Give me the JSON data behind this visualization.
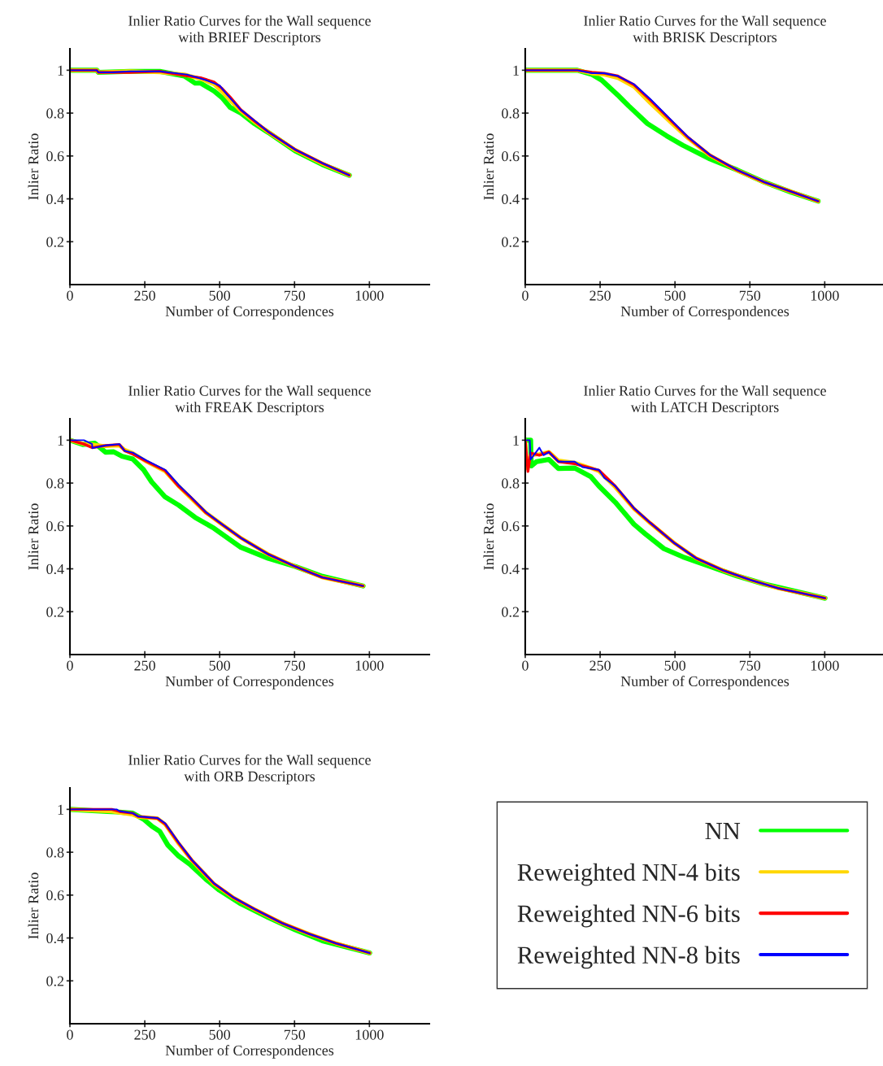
{
  "chart_data": [
    {
      "type": "line",
      "title": "Inlier Ratio Curves for the Wall sequence\nwith BRIEF Descriptors",
      "xlabel": "Number of Correspondences",
      "ylabel": "Inlier Ratio",
      "xlim": [
        0,
        1200
      ],
      "xticks": [
        0,
        250,
        500,
        750,
        1000
      ],
      "ylim": [
        0,
        1.1
      ],
      "yticks": [
        0.2,
        0.4,
        0.6,
        0.8,
        1
      ],
      "legend": "bottom right",
      "series": [
        {
          "name": "NN",
          "color": "#00ff00",
          "x": [
            0,
            90,
            95,
            200,
            300,
            382,
            418,
            436,
            481,
            508,
            535,
            571,
            617,
            662,
            752,
            843,
            933
          ],
          "values": [
            1,
            1,
            0.99,
            0.995,
            0.995,
            0.973,
            0.94,
            0.94,
            0.903,
            0.872,
            0.827,
            0.8,
            0.75,
            0.71,
            0.624,
            0.56,
            0.51
          ]
        },
        {
          "name": "Reweighted NN-4 bits",
          "color": "#ffd700",
          "x": [
            0,
            90,
            95,
            200,
            300,
            382,
            436,
            481,
            508,
            535,
            571,
            617,
            662,
            752,
            843,
            933
          ],
          "values": [
            1,
            1,
            0.99,
            0.995,
            0.99,
            0.98,
            0.96,
            0.935,
            0.9,
            0.86,
            0.81,
            0.758,
            0.712,
            0.628,
            0.564,
            0.51
          ]
        },
        {
          "name": "Reweighted NN-6 bits",
          "color": "#ff0000",
          "x": [
            0,
            90,
            95,
            200,
            300,
            382,
            436,
            481,
            508,
            535,
            571,
            617,
            662,
            752,
            843,
            933
          ],
          "values": [
            1,
            1,
            0.99,
            0.99,
            0.995,
            0.975,
            0.965,
            0.945,
            0.915,
            0.875,
            0.815,
            0.762,
            0.713,
            0.63,
            0.566,
            0.51
          ]
        },
        {
          "name": "Reweighted NN-8 bits",
          "color": "#0000ff",
          "x": [
            0,
            90,
            95,
            140,
            200,
            300,
            391,
            454,
            472,
            500,
            526,
            571,
            617,
            662,
            752,
            843,
            933
          ],
          "values": [
            1,
            1,
            0.99,
            0.99,
            0.995,
            0.995,
            0.98,
            0.954,
            0.944,
            0.929,
            0.884,
            0.815,
            0.764,
            0.713,
            0.63,
            0.567,
            0.51
          ]
        }
      ]
    },
    {
      "type": "line",
      "title": "Inlier Ratio Curves for the Wall sequence\nwith BRISK Descriptors",
      "xlabel": "Number of Correspondences",
      "ylabel": "Inlier Ratio",
      "xlim": [
        0,
        1200
      ],
      "xticks": [
        0,
        250,
        500,
        750,
        1000
      ],
      "ylim": [
        0,
        1.1
      ],
      "yticks": [
        0.2,
        0.4,
        0.6,
        0.8,
        1
      ],
      "series": [
        {
          "color": "#00ff00",
          "x": [
            0,
            174,
            223,
            255,
            309,
            345,
            408,
            472,
            526,
            617,
            707,
            798,
            888,
            978
          ],
          "values": [
            1,
            1,
            0.98,
            0.954,
            0.884,
            0.834,
            0.751,
            0.694,
            0.65,
            0.586,
            0.535,
            0.478,
            0.431,
            0.389
          ]
        },
        {
          "color": "#ffd700",
          "x": [
            0,
            174,
            223,
            264,
            309,
            363,
            418,
            490,
            544,
            617,
            707,
            798,
            888,
            978
          ],
          "values": [
            1,
            1,
            0.985,
            0.98,
            0.964,
            0.923,
            0.846,
            0.751,
            0.682,
            0.602,
            0.533,
            0.477,
            0.433,
            0.389
          ]
        },
        {
          "color": "#ff0000",
          "x": [
            0,
            174,
            223,
            264,
            309,
            363,
            418,
            490,
            544,
            617,
            707,
            798,
            888,
            978
          ],
          "values": [
            1,
            1,
            0.99,
            0.986,
            0.973,
            0.932,
            0.86,
            0.76,
            0.686,
            0.604,
            0.534,
            0.478,
            0.434,
            0.389
          ]
        },
        {
          "color": "#0000ff",
          "x": [
            0,
            174,
            223,
            264,
            309,
            363,
            418,
            490,
            544,
            617,
            707,
            798,
            888,
            978
          ],
          "values": [
            1,
            1,
            0.986,
            0.986,
            0.973,
            0.935,
            0.865,
            0.764,
            0.688,
            0.605,
            0.535,
            0.478,
            0.434,
            0.389
          ]
        }
      ]
    },
    {
      "type": "line",
      "title": "Inlier Ratio Curves for the Wall sequence\nwith FREAK Descriptors",
      "xlabel": "Number of Correspondences",
      "ylabel": "Inlier Ratio",
      "xlim": [
        0,
        1200
      ],
      "xticks": [
        0,
        250,
        500,
        750,
        1000
      ],
      "ylim": [
        0,
        1.1
      ],
      "yticks": [
        0.2,
        0.4,
        0.6,
        0.8,
        1
      ],
      "series": [
        {
          "color": "#00ff00",
          "x": [
            0,
            43,
            83,
            119,
            146,
            174,
            210,
            246,
            273,
            318,
            363,
            418,
            481,
            526,
            571,
            662,
            752,
            843,
            979
          ],
          "values": [
            1,
            0.98,
            0.986,
            0.944,
            0.946,
            0.925,
            0.912,
            0.862,
            0.805,
            0.735,
            0.697,
            0.64,
            0.589,
            0.544,
            0.5,
            0.449,
            0.411,
            0.365,
            0.32
          ]
        },
        {
          "color": "#ffd700",
          "x": [
            0,
            47,
            74,
            119,
            165,
            183,
            210,
            255,
            318,
            363,
            400,
            454,
            508,
            571,
            662,
            752,
            843,
            979
          ],
          "values": [
            1,
            0.982,
            0.98,
            0.972,
            0.975,
            0.955,
            0.94,
            0.9,
            0.855,
            0.785,
            0.735,
            0.662,
            0.607,
            0.544,
            0.468,
            0.411,
            0.36,
            0.32
          ]
        },
        {
          "color": "#ff0000",
          "x": [
            0,
            47,
            74,
            119,
            165,
            183,
            210,
            255,
            318,
            363,
            400,
            454,
            508,
            571,
            662,
            752,
            843,
            979
          ],
          "values": [
            1,
            0.982,
            0.965,
            0.975,
            0.98,
            0.95,
            0.935,
            0.902,
            0.858,
            0.785,
            0.738,
            0.662,
            0.607,
            0.544,
            0.468,
            0.411,
            0.36,
            0.32
          ]
        },
        {
          "color": "#0000ff",
          "x": [
            0,
            47,
            74,
            75,
            119,
            165,
            183,
            210,
            255,
            318,
            363,
            400,
            454,
            508,
            571,
            662,
            752,
            843,
            979
          ],
          "values": [
            1,
            1,
            0.982,
            0.963,
            0.976,
            0.982,
            0.95,
            0.942,
            0.906,
            0.862,
            0.792,
            0.741,
            0.665,
            0.608,
            0.544,
            0.468,
            0.411,
            0.36,
            0.32
          ]
        }
      ]
    },
    {
      "type": "line",
      "title": "Inlier Ratio Curves for the Wall sequence\nwith LATCH Descriptors",
      "xlabel": "Number of Correspondences",
      "ylabel": "Inlier Ratio",
      "xlim": [
        0,
        1200
      ],
      "xticks": [
        0,
        250,
        500,
        750,
        1000
      ],
      "ylim": [
        0,
        1.1
      ],
      "yticks": [
        0.2,
        0.4,
        0.6,
        0.8,
        1
      ],
      "series": [
        {
          "color": "#00ff00",
          "x": [
            0,
            18,
            20,
            38,
            79,
            111,
            165,
            219,
            246,
            301,
            363,
            400,
            463,
            526,
            617,
            707,
            798,
            1001
          ],
          "values": [
            1,
            1,
            0.88,
            0.9,
            0.91,
            0.868,
            0.87,
            0.83,
            0.786,
            0.71,
            0.608,
            0.564,
            0.494,
            0.456,
            0.411,
            0.367,
            0.329,
            0.263
          ]
        },
        {
          "color": "#ffd700",
          "x": [
            0,
            5,
            18,
            47,
            79,
            111,
            165,
            219,
            246,
            301,
            363,
            418,
            499,
            571,
            662,
            752,
            843,
            1001
          ],
          "values": [
            1,
            0.87,
            0.93,
            0.935,
            0.945,
            0.905,
            0.895,
            0.87,
            0.855,
            0.78,
            0.68,
            0.612,
            0.519,
            0.449,
            0.392,
            0.348,
            0.31,
            0.263
          ]
        },
        {
          "color": "#ff0000",
          "x": [
            0,
            9,
            18,
            47,
            79,
            111,
            165,
            219,
            246,
            301,
            363,
            418,
            499,
            571,
            662,
            752,
            843,
            1001
          ],
          "values": [
            1,
            0.854,
            0.94,
            0.93,
            0.945,
            0.9,
            0.89,
            0.87,
            0.86,
            0.785,
            0.682,
            0.614,
            0.519,
            0.449,
            0.392,
            0.348,
            0.31,
            0.263
          ]
        },
        {
          "color": "#0000ff",
          "x": [
            0,
            15,
            18,
            47,
            61,
            79,
            111,
            165,
            192,
            246,
            264,
            301,
            363,
            418,
            499,
            571,
            662,
            752,
            843,
            1001
          ],
          "values": [
            1,
            1,
            0.91,
            0.965,
            0.93,
            0.944,
            0.9,
            0.9,
            0.874,
            0.862,
            0.824,
            0.786,
            0.684,
            0.614,
            0.519,
            0.449,
            0.392,
            0.348,
            0.31,
            0.263
          ]
        }
      ]
    },
    {
      "type": "line",
      "title": "Inlier Ratio Curves for the Wall sequence\nwith ORB Descriptors",
      "xlabel": "Number of Correspondences",
      "ylabel": "Inlier Ratio",
      "xlim": [
        0,
        1200
      ],
      "xticks": [
        0,
        250,
        500,
        750,
        1000
      ],
      "ylim": [
        0,
        1.1
      ],
      "yticks": [
        0.2,
        0.4,
        0.6,
        0.8,
        1
      ],
      "series": [
        {
          "color": "#00ff00",
          "x": [
            0,
            124,
            156,
            210,
            246,
            273,
            300,
            327,
            363,
            400,
            454,
            499,
            571,
            662,
            752,
            843,
            1001
          ],
          "values": [
            1,
            0.99,
            0.988,
            0.982,
            0.954,
            0.922,
            0.897,
            0.833,
            0.782,
            0.744,
            0.674,
            0.623,
            0.559,
            0.496,
            0.438,
            0.387,
            0.33
          ]
        },
        {
          "color": "#ffd700",
          "x": [
            0,
            140,
            165,
            210,
            228,
            292,
            318,
            363,
            408,
            481,
            544,
            617,
            707,
            798,
            888,
            1001
          ],
          "values": [
            1,
            0.99,
            0.985,
            0.975,
            0.965,
            0.958,
            0.93,
            0.84,
            0.76,
            0.652,
            0.59,
            0.533,
            0.47,
            0.419,
            0.375,
            0.33
          ]
        },
        {
          "color": "#ff0000",
          "x": [
            0,
            140,
            165,
            210,
            228,
            292,
            318,
            363,
            408,
            481,
            544,
            617,
            707,
            798,
            888,
            1001
          ],
          "values": [
            1,
            1,
            0.99,
            0.982,
            0.967,
            0.958,
            0.932,
            0.843,
            0.762,
            0.654,
            0.59,
            0.534,
            0.47,
            0.419,
            0.375,
            0.33
          ]
        },
        {
          "color": "#0000ff",
          "x": [
            0,
            156,
            165,
            210,
            228,
            292,
            318,
            363,
            408,
            481,
            544,
            617,
            707,
            798,
            888,
            1001
          ],
          "values": [
            1,
            1,
            0.992,
            0.982,
            0.967,
            0.96,
            0.935,
            0.846,
            0.763,
            0.655,
            0.591,
            0.534,
            0.47,
            0.419,
            0.375,
            0.33
          ]
        }
      ]
    }
  ]
}
